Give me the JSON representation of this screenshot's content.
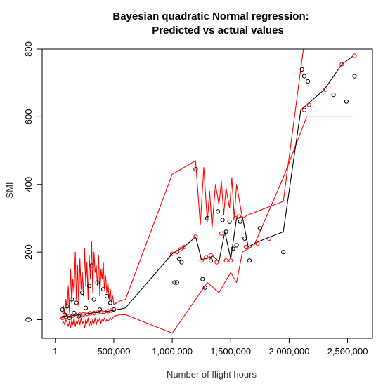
{
  "chart_data": {
    "type": "line",
    "title_line1": "Bayesian quadratic Normal regression:",
    "title_line2": "Predicted vs actual values",
    "xlabel": "Number of flight hours",
    "ylabel": "SMI",
    "xlim": [
      1,
      2600000
    ],
    "ylim": [
      -30,
      800
    ],
    "x_ticks": [
      {
        "value": 1,
        "label": "1"
      },
      {
        "value": 500000,
        "label": "500,000"
      },
      {
        "value": 1000000,
        "label": "1,000,000"
      },
      {
        "value": 1500000,
        "label": "1,500,000"
      },
      {
        "value": 2000000,
        "label": "2,000,000"
      },
      {
        "value": 2500000,
        "label": "2,500,000"
      }
    ],
    "y_ticks": [
      {
        "value": 0,
        "label": "0"
      },
      {
        "value": 200,
        "label": "200"
      },
      {
        "value": 400,
        "label": "400"
      },
      {
        "value": 600,
        "label": "600"
      },
      {
        "value": 800,
        "label": "800"
      }
    ],
    "colors": {
      "prediction": "#000000",
      "interval": "#ff0000",
      "predicted_points": "#ff0000",
      "actual_points": "#000000"
    },
    "series": [
      {
        "role": "prediction",
        "x": [
          50000,
          80000,
          110000,
          140000,
          170000,
          200000,
          230000,
          260000,
          290000,
          320000,
          350000,
          380000,
          410000,
          440000,
          470000,
          500000,
          550000,
          600000,
          1000000,
          1050000,
          1100000,
          1150000,
          1200000,
          1250000,
          1300000,
          1350000,
          1400000,
          1450000,
          1500000,
          1550000,
          1600000,
          1650000,
          1700000,
          1800000,
          1950000,
          2100000,
          2150000,
          2300000,
          2450000,
          2550000
        ],
        "y": [
          5,
          8,
          10,
          12,
          13,
          15,
          16,
          17,
          19,
          20,
          21,
          22,
          24,
          25,
          26,
          28,
          31,
          35,
          195,
          205,
          215,
          230,
          245,
          178,
          182,
          188,
          172,
          260,
          180,
          300,
          305,
          215,
          225,
          240,
          260,
          620,
          635,
          680,
          755,
          780
        ]
      },
      {
        "role": "interval-upper",
        "x": [
          60000,
          70000,
          80000,
          90000,
          100000,
          110000,
          120000,
          130000,
          140000,
          150000,
          160000,
          170000,
          180000,
          190000,
          200000,
          210000,
          220000,
          230000,
          240000,
          250000,
          260000,
          270000,
          280000,
          290000,
          300000,
          310000,
          320000,
          330000,
          340000,
          350000,
          360000,
          370000,
          380000,
          390000,
          400000,
          410000,
          420000,
          430000,
          440000,
          450000,
          460000,
          470000,
          480000,
          490000,
          500000,
          550000,
          600000,
          1000000,
          1200000,
          1240000,
          1270000,
          1300000,
          1320000,
          1340000,
          1370000,
          1400000,
          1420000,
          1440000,
          1460000,
          1490000,
          1510000,
          1530000,
          1550000,
          1580000,
          1600000,
          1650000,
          1950000,
          2130000
        ],
        "y": [
          20,
          40,
          15,
          60,
          30,
          100,
          20,
          150,
          50,
          120,
          80,
          200,
          60,
          160,
          40,
          180,
          90,
          140,
          70,
          210,
          100,
          170,
          60,
          190,
          120,
          230,
          80,
          200,
          140,
          160,
          100,
          190,
          70,
          150,
          120,
          170,
          90,
          130,
          80,
          110,
          60,
          90,
          50,
          70,
          45,
          55,
          60,
          430,
          470,
          280,
          450,
          290,
          380,
          270,
          400,
          340,
          410,
          310,
          390,
          330,
          420,
          300,
          400,
          340,
          300,
          310,
          350,
          820
        ]
      },
      {
        "role": "interval-lower",
        "x": [
          60000,
          70000,
          80000,
          90000,
          100000,
          110000,
          120000,
          130000,
          140000,
          150000,
          160000,
          170000,
          180000,
          190000,
          200000,
          210000,
          220000,
          230000,
          240000,
          250000,
          260000,
          270000,
          280000,
          290000,
          300000,
          310000,
          320000,
          330000,
          340000,
          350000,
          360000,
          370000,
          380000,
          390000,
          400000,
          410000,
          420000,
          430000,
          440000,
          450000,
          460000,
          470000,
          480000,
          490000,
          500000,
          550000,
          600000,
          1000000,
          1200000,
          1300000,
          1400000,
          1500000,
          1550000,
          1600000,
          1700000,
          1950000,
          2150000,
          2550000
        ],
        "y": [
          -10,
          -5,
          -15,
          0,
          -8,
          -20,
          -5,
          -25,
          0,
          -15,
          5,
          -20,
          -5,
          -10,
          0,
          -15,
          5,
          -10,
          -5,
          -25,
          0,
          -10,
          5,
          -20,
          -5,
          -15,
          0,
          -10,
          5,
          -15,
          0,
          -5,
          5,
          -10,
          0,
          -5,
          5,
          -5,
          0,
          -5,
          0,
          5,
          0,
          5,
          10,
          15,
          15,
          -40,
          60,
          110,
          80,
          140,
          110,
          200,
          220,
          420,
          600,
          600
        ]
      },
      {
        "role": "predicted-points",
        "x": [
          60000,
          90000,
          120000,
          150000,
          180000,
          210000,
          240000,
          270000,
          300000,
          330000,
          360000,
          390000,
          420000,
          450000,
          480000,
          1000000,
          1040000,
          1070000,
          1100000,
          1200000,
          1250000,
          1290000,
          1330000,
          1380000,
          1420000,
          1460000,
          1500000,
          1540000,
          1570000,
          1630000,
          1730000,
          1830000,
          2130000,
          2170000,
          2310000,
          2450000,
          2560000
        ],
        "y": [
          5,
          9,
          11,
          12,
          13,
          15,
          16,
          17,
          19,
          20,
          21,
          23,
          24,
          25,
          27,
          195,
          200,
          208,
          215,
          245,
          175,
          185,
          190,
          170,
          255,
          175,
          175,
          300,
          305,
          215,
          225,
          240,
          620,
          635,
          680,
          755,
          780
        ]
      },
      {
        "role": "actual-points",
        "x": [
          60000,
          80000,
          100000,
          120000,
          140000,
          160000,
          180000,
          200000,
          230000,
          260000,
          290000,
          310000,
          330000,
          360000,
          380000,
          410000,
          440000,
          470000,
          500000,
          1020000,
          1040000,
          1060000,
          1080000,
          1200000,
          1260000,
          1280000,
          1300000,
          1330000,
          1390000,
          1430000,
          1460000,
          1490000,
          1520000,
          1550000,
          1580000,
          1620000,
          1660000,
          1750000,
          1950000,
          2110000,
          2130000,
          2160000,
          2380000,
          2490000,
          2560000
        ],
        "y": [
          30,
          15,
          40,
          5,
          60,
          20,
          50,
          10,
          80,
          35,
          100,
          160,
          60,
          110,
          30,
          90,
          70,
          50,
          30,
          110,
          110,
          180,
          170,
          445,
          120,
          95,
          300,
          175,
          320,
          295,
          260,
          290,
          210,
          220,
          290,
          240,
          175,
          270,
          200,
          740,
          720,
          705,
          665,
          645,
          720
        ]
      }
    ]
  }
}
